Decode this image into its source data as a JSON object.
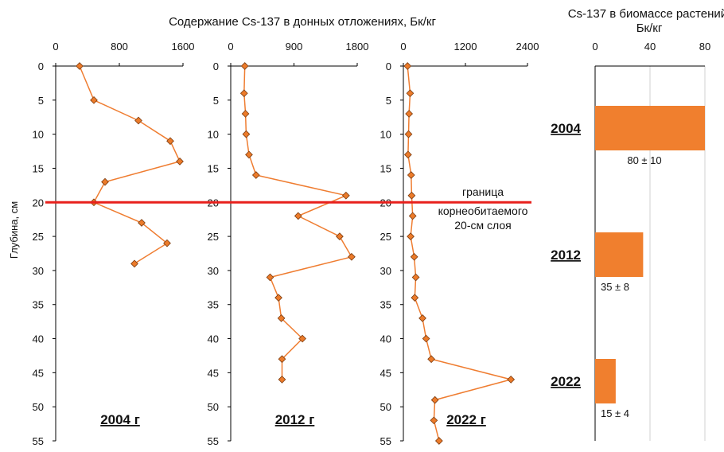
{
  "chart_data": [
    {
      "type": "line",
      "panel_label": "2004 г",
      "xlim": [
        0,
        1600
      ],
      "xticks": [
        0,
        800,
        1600
      ],
      "ylim": [
        0,
        55
      ],
      "yticks": [
        0,
        5,
        10,
        15,
        20,
        25,
        30,
        35,
        40,
        45,
        50,
        55
      ],
      "series": [
        {
          "x": [
            300,
            480,
            1040,
            1440,
            1560,
            620,
            480,
            1080,
            1400,
            990
          ],
          "y": [
            0,
            5,
            8,
            11,
            14,
            17,
            20,
            23,
            26,
            29
          ]
        }
      ]
    },
    {
      "type": "line",
      "panel_label": "2012 г",
      "xlim": [
        0,
        1800
      ],
      "xticks": [
        0,
        900,
        1800
      ],
      "ylim": [
        0,
        55
      ],
      "yticks": [
        0,
        5,
        10,
        15,
        20,
        25,
        30,
        35,
        40,
        45,
        50,
        55
      ],
      "series": [
        {
          "x": [
            200,
            190,
            210,
            220,
            260,
            360,
            1640,
            960,
            1550,
            1720,
            560,
            680,
            720,
            1020,
            730,
            730
          ],
          "y": [
            0,
            4,
            7,
            10,
            13,
            16,
            19,
            22,
            25,
            28,
            31,
            34,
            37,
            40,
            43,
            46
          ]
        }
      ]
    },
    {
      "type": "line",
      "panel_label": "2022 г",
      "xlim": [
        0,
        2400
      ],
      "xticks": [
        0,
        1200,
        2400
      ],
      "ylim": [
        0,
        55
      ],
      "yticks": [
        0,
        5,
        10,
        15,
        20,
        25,
        30,
        35,
        40,
        45,
        50,
        55
      ],
      "series": [
        {
          "x": [
            80,
            130,
            110,
            100,
            90,
            150,
            160,
            180,
            140,
            210,
            240,
            220,
            370,
            440,
            540,
            2080,
            610,
            590,
            690
          ],
          "y": [
            0,
            4,
            7,
            10,
            13,
            16,
            19,
            22,
            25,
            28,
            31,
            34,
            37,
            40,
            43,
            46,
            49,
            52,
            55
          ]
        }
      ]
    },
    {
      "type": "bar",
      "orientation": "horizontal",
      "title": "Cs-137 в биомассе растений, Бк/кг",
      "xlim": [
        0,
        80
      ],
      "xticks": [
        0,
        40,
        80
      ],
      "categories": [
        "2004",
        "2012",
        "2022"
      ],
      "values": [
        80,
        35,
        15
      ],
      "errors": [
        10,
        8,
        4
      ],
      "value_labels": [
        "80 ± 10",
        "35 ± 8",
        "15 ± 4"
      ],
      "color": "#f07f2e"
    }
  ],
  "shared": {
    "top_title": "Содержание Cs-137 в донных отложениях, Бк/кг",
    "ylabel": "Глубина, см",
    "boundary_depth": 20,
    "boundary_note": [
      "граница",
      "корнеобитаемого",
      "20-см слоя"
    ],
    "boundary_color": "#e8201c",
    "line_color": "#ef7d31",
    "marker_color": "#ec7b2a",
    "marker_edge": "#7a3a0e"
  }
}
